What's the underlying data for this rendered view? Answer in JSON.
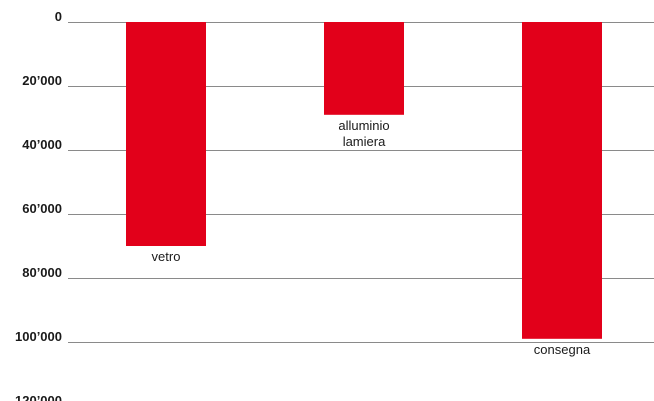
{
  "chart_data": {
    "type": "bar",
    "orientation": "vertical-downward",
    "categories": [
      "vetro",
      "alluminio lamiera",
      "consegna"
    ],
    "label_lines": [
      [
        "vetro"
      ],
      [
        "alluminio",
        "lamiera"
      ],
      [
        "consegna"
      ]
    ],
    "values": [
      70000,
      29000,
      99000
    ],
    "ylim": [
      0,
      120000
    ],
    "yticks": [
      0,
      20000,
      40000,
      60000,
      80000,
      100000,
      120000
    ],
    "ytick_labels": [
      "0",
      "20’000",
      "40’000",
      "60’000",
      "80’000",
      "100’000",
      "120’000"
    ],
    "title": "",
    "xlabel": "",
    "ylabel": "",
    "grid": true,
    "legend": "none",
    "colors": {
      "bar": "#e2001a",
      "grid": "#8a8a8a",
      "text": "#1a1a1a"
    }
  }
}
